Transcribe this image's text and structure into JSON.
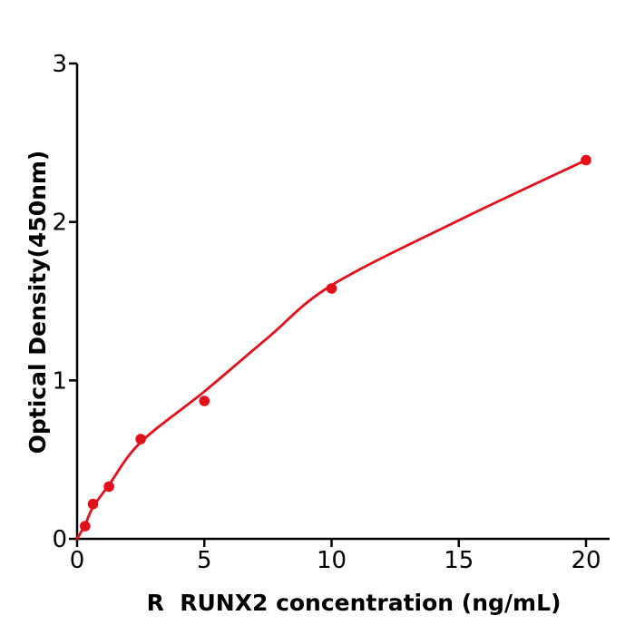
{
  "figure": {
    "background": "#ffffff",
    "axis_color": "#000000",
    "accent_red": "#e3101b"
  },
  "chart_data": {
    "type": "scatter",
    "title": "",
    "xlabel": "R  RUNX2 concentration (ng/mL)",
    "ylabel": "Optical Density(450nm)",
    "x_ticks": [
      0,
      5,
      10,
      15,
      20
    ],
    "y_ticks": [
      0,
      1,
      2,
      3
    ],
    "xlim": [
      0,
      20.93
    ],
    "ylim": [
      0,
      3
    ],
    "grid": false,
    "legend": null,
    "series": [
      {
        "name": "standard-points",
        "type": "scatter",
        "color": "#e3101b",
        "x": [
          0.3125,
          0.625,
          1.25,
          2.5,
          5,
          10,
          20
        ],
        "y": [
          0.08,
          0.22,
          0.33,
          0.63,
          0.87,
          1.58,
          2.39
        ]
      },
      {
        "name": "fit-curve",
        "type": "line",
        "color": "#e3101b",
        "x": [
          0,
          0.3125,
          0.625,
          1.25,
          2.5,
          5,
          7.5,
          10,
          15,
          20
        ],
        "y": [
          0,
          0.09,
          0.2,
          0.34,
          0.61,
          0.93,
          1.27,
          1.6,
          2.01,
          2.39
        ]
      }
    ]
  }
}
